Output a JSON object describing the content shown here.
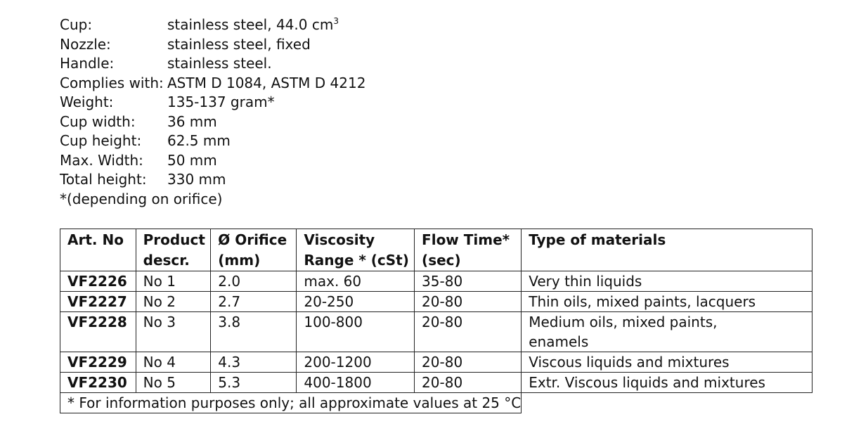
{
  "specs": [
    {
      "label": "Cup:",
      "value": "stainless steel, 44.0 cm",
      "sup": "3"
    },
    {
      "label": "Nozzle:",
      "value": "stainless steel, fixed",
      "sup": ""
    },
    {
      "label": "Handle:",
      "value": "stainless steel.",
      "sup": ""
    },
    {
      "label": "Complies with:",
      "value": "ASTM D 1084, ASTM D 4212",
      "sup": ""
    },
    {
      "label": "Weight:",
      "value": "135-137 gram*",
      "sup": ""
    },
    {
      "label": "Cup width:",
      "value": "36 mm",
      "sup": ""
    },
    {
      "label": "Cup height:",
      "value": "62.5 mm",
      "sup": ""
    },
    {
      "label": "Max. Width:",
      "value": "50 mm",
      "sup": ""
    },
    {
      "label": "Total height:",
      "value": "330 mm",
      "sup": ""
    }
  ],
  "specs_note": "*(depending on orifice)",
  "table": {
    "headers": [
      {
        "line1": "Art. No",
        "line2": ""
      },
      {
        "line1": "Product",
        "line2": "descr."
      },
      {
        "line1": "Ø Orifice",
        "line2": "(mm)"
      },
      {
        "line1": "Viscosity",
        "line2": "Range * (cSt)"
      },
      {
        "line1": "Flow Time*",
        "line2": " (sec)"
      },
      {
        "line1": "Type of materials",
        "line2": ""
      }
    ],
    "rows": [
      {
        "art": "VF2226",
        "descr": "No 1",
        "orifice": "2.0",
        "viscosity": "max. 60",
        "flow": "35-80",
        "type": "Very thin liquids"
      },
      {
        "art": "VF2227",
        "descr": "No 2",
        "orifice": "2.7",
        "viscosity": "20-250",
        "flow": "20-80",
        "type": "Thin oils, mixed paints, lacquers"
      },
      {
        "art": "VF2228",
        "descr": "No 3",
        "orifice": "3.8",
        "viscosity": "100-800",
        "flow": "20-80",
        "type": "Medium oils, mixed paints, enamels"
      },
      {
        "art": "VF2229",
        "descr": "No 4",
        "orifice": "4.3",
        "viscosity": "200-1200",
        "flow": "20-80",
        "type": "Viscous liquids and mixtures"
      },
      {
        "art": "VF2230",
        "descr": "No 5",
        "orifice": "5.3",
        "viscosity": "400-1800",
        "flow": "20-80",
        "type": "Extr. Viscous liquids and mixtures"
      }
    ],
    "footnote": "* For information purposes only; all approximate values at 25 °C"
  }
}
